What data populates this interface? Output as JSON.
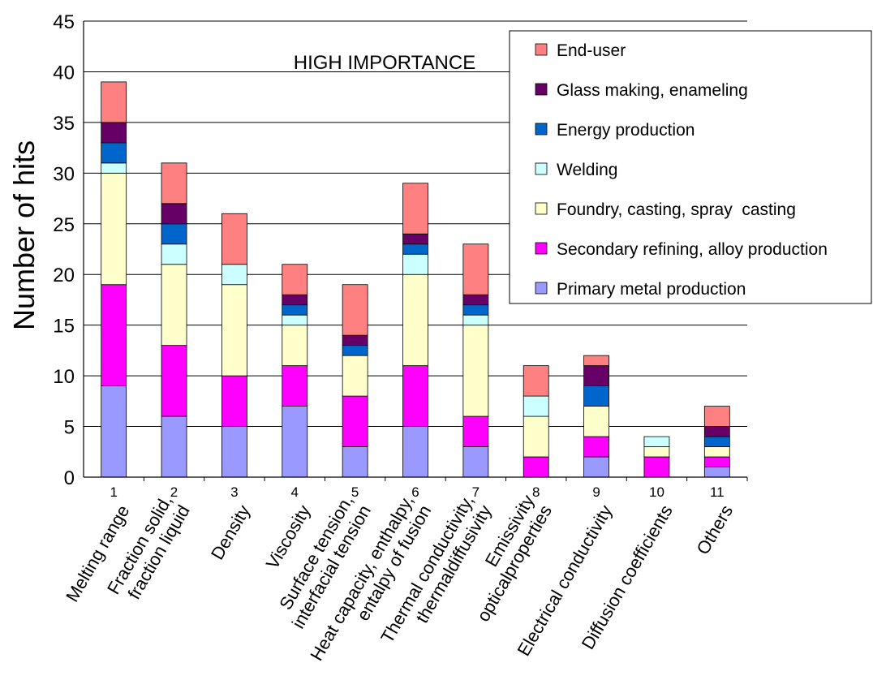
{
  "chart_data": {
    "type": "bar",
    "stacked": true,
    "title": "HIGH IMPORTANCE",
    "ylabel": "Number of hits",
    "xlabel": "",
    "ylim": [
      0,
      45
    ],
    "yticks": [
      0,
      5,
      10,
      15,
      20,
      25,
      30,
      35,
      40,
      45
    ],
    "grid": true,
    "legend_position": "top-right",
    "categories": [
      "1",
      "2",
      "3",
      "4",
      "5",
      "6",
      "7",
      "8",
      "9",
      "10",
      "11"
    ],
    "category_labels": [
      [
        "Melting range"
      ],
      [
        "Fraction solid,",
        "fraction liquid"
      ],
      [
        "Density"
      ],
      [
        "Viscosity"
      ],
      [
        "Surface tension,",
        "interfacial tension"
      ],
      [
        "Heat capacity, enthalpy,",
        "entalpy of fusion"
      ],
      [
        "Thermal conductivity,",
        "thermaldiffusivity"
      ],
      [
        "Emissivity",
        "opticalproperties"
      ],
      [
        "Electrical conductivity"
      ],
      [
        "Diffusion coefficients"
      ],
      [
        "Others"
      ]
    ],
    "series": [
      {
        "name": "Primary metal production",
        "color": "#9999ff",
        "values": [
          9,
          6,
          5,
          7,
          3,
          5,
          3,
          0,
          2,
          0,
          1
        ]
      },
      {
        "name": "Secondary refining, alloy production",
        "color": "#ff00ff",
        "values": [
          10,
          7,
          5,
          4,
          5,
          6,
          3,
          2,
          2,
          2,
          1
        ]
      },
      {
        "name": "Foundry, casting, spray  casting",
        "color": "#ffffcc",
        "values": [
          11,
          8,
          9,
          4,
          4,
          9,
          9,
          4,
          3,
          1,
          1
        ]
      },
      {
        "name": "Welding",
        "color": "#ccffff",
        "values": [
          1,
          2,
          2,
          1,
          0,
          2,
          1,
          2,
          0,
          1,
          0
        ]
      },
      {
        "name": "Energy production",
        "color": "#0066cc",
        "values": [
          2,
          2,
          0,
          1,
          1,
          1,
          1,
          0,
          2,
          0,
          1
        ]
      },
      {
        "name": "Glass making, enameling",
        "color": "#660066",
        "values": [
          2,
          2,
          0,
          1,
          1,
          1,
          1,
          0,
          2,
          0,
          1
        ]
      },
      {
        "name": "End-user",
        "color": "#ff8080",
        "values": [
          4,
          4,
          5,
          3,
          5,
          5,
          5,
          3,
          1,
          0,
          2
        ]
      }
    ]
  }
}
